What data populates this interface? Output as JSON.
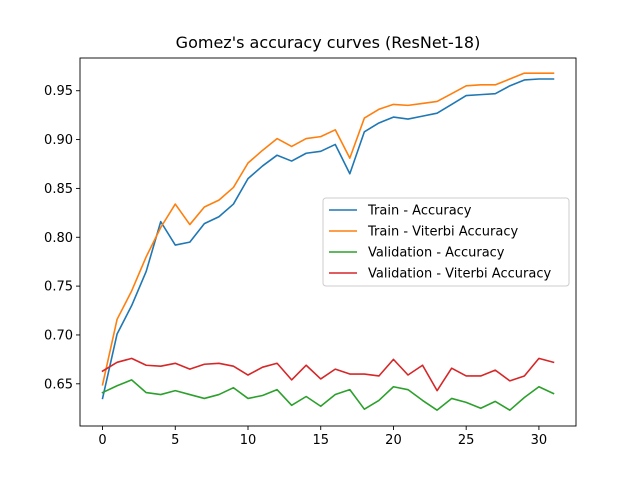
{
  "chart_data": {
    "type": "line",
    "title": "Gomez's accuracy curves (ResNet-18)",
    "xlabel": "",
    "ylabel": "",
    "xlim": [
      -1.55,
      32.55
    ],
    "ylim": [
      0.6068,
      0.9835
    ],
    "x_ticks": [
      0,
      5,
      10,
      15,
      20,
      25,
      30
    ],
    "x_tick_labels": [
      "0",
      "5",
      "10",
      "15",
      "20",
      "25",
      "30"
    ],
    "y_ticks": [
      0.65,
      0.7,
      0.75,
      0.8,
      0.85,
      0.9,
      0.95
    ],
    "y_tick_labels": [
      "0.65",
      "0.70",
      "0.75",
      "0.80",
      "0.85",
      "0.90",
      "0.95"
    ],
    "grid": false,
    "legend_position": "center-right",
    "x": [
      0,
      1,
      2,
      3,
      4,
      5,
      6,
      7,
      8,
      9,
      10,
      11,
      12,
      13,
      14,
      15,
      16,
      17,
      18,
      19,
      20,
      21,
      22,
      23,
      24,
      25,
      26,
      27,
      28,
      29,
      30,
      31
    ],
    "series": [
      {
        "name": "Train - Accuracy",
        "color": "#1f77b4",
        "values": [
          0.635,
          0.701,
          0.73,
          0.765,
          0.816,
          0.792,
          0.795,
          0.814,
          0.821,
          0.834,
          0.86,
          0.873,
          0.884,
          0.878,
          0.886,
          0.888,
          0.895,
          0.865,
          0.908,
          0.917,
          0.923,
          0.921,
          0.924,
          0.927,
          0.936,
          0.945,
          0.946,
          0.947,
          0.955,
          0.961,
          0.962,
          0.962
        ]
      },
      {
        "name": "Train - Viterbi Accuracy",
        "color": "#ff7f0e",
        "values": [
          0.649,
          0.716,
          0.745,
          0.78,
          0.81,
          0.834,
          0.813,
          0.831,
          0.838,
          0.851,
          0.876,
          0.889,
          0.901,
          0.893,
          0.901,
          0.903,
          0.91,
          0.881,
          0.922,
          0.931,
          0.936,
          0.935,
          0.937,
          0.939,
          0.947,
          0.955,
          0.956,
          0.956,
          0.962,
          0.968,
          0.968,
          0.968
        ]
      },
      {
        "name": "Validation - Accuracy",
        "color": "#2ca02c",
        "values": [
          0.641,
          0.648,
          0.654,
          0.641,
          0.639,
          0.643,
          0.639,
          0.635,
          0.639,
          0.646,
          0.635,
          0.638,
          0.644,
          0.628,
          0.637,
          0.627,
          0.639,
          0.644,
          0.624,
          0.633,
          0.647,
          0.644,
          0.633,
          0.623,
          0.635,
          0.631,
          0.625,
          0.632,
          0.623,
          0.636,
          0.647,
          0.64
        ]
      },
      {
        "name": "Validation - Viterbi Accuracy",
        "color": "#d62728",
        "values": [
          0.663,
          0.672,
          0.676,
          0.669,
          0.668,
          0.671,
          0.665,
          0.67,
          0.671,
          0.668,
          0.659,
          0.667,
          0.671,
          0.654,
          0.669,
          0.655,
          0.665,
          0.66,
          0.66,
          0.658,
          0.675,
          0.659,
          0.669,
          0.643,
          0.666,
          0.658,
          0.658,
          0.664,
          0.653,
          0.658,
          0.676,
          0.672
        ]
      }
    ]
  }
}
